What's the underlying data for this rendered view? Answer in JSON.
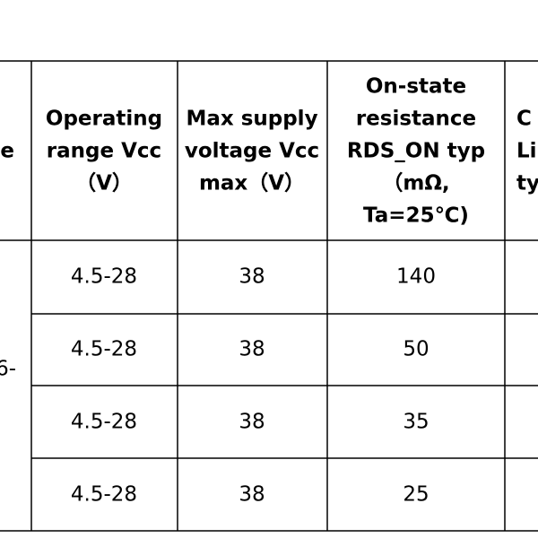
{
  "table": {
    "header": [
      [
        "ge"
      ],
      [
        "Operating",
        "range Vcc",
        "（V）"
      ],
      [
        "Max supply",
        "voltage Vcc",
        "max（V）"
      ],
      [
        "On-state",
        "resistance",
        "RDS_ON typ",
        "（mΩ,",
        "Ta=25℃)"
      ],
      [
        "C",
        "Li",
        "ty"
      ]
    ],
    "merged_cell": "6-",
    "rows": [
      [
        "4.5-28",
        "38",
        "140"
      ],
      [
        "4.5-28",
        "38",
        "50"
      ],
      [
        "4.5-28",
        "38",
        "35"
      ],
      [
        "4.5-28",
        "38",
        "25"
      ]
    ]
  }
}
